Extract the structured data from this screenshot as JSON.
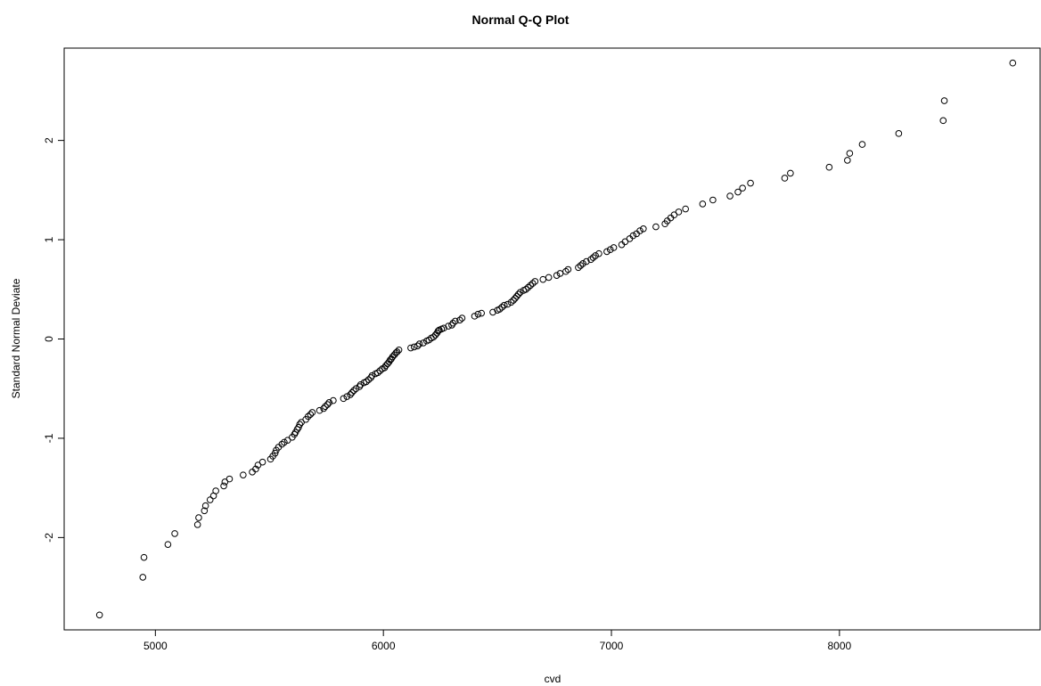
{
  "chart_data": {
    "type": "scatter",
    "title": "Normal Q-Q Plot",
    "xlabel": "cvd",
    "ylabel": "Standard Normal Deviate",
    "xlim": [
      4600,
      8880
    ],
    "ylim": [
      -2.93,
      2.93
    ],
    "xticks": [
      5000,
      6000,
      7000,
      8000
    ],
    "yticks": [
      -2,
      -1,
      0,
      1,
      2
    ],
    "xtick_labels": [
      "5000",
      "6000",
      "7000",
      "8000"
    ],
    "ytick_labels": [
      "-2",
      "-1",
      "0",
      "1",
      "2"
    ],
    "grid": false,
    "legend": "none",
    "marker": "open-circle",
    "points": [
      [
        4755,
        -2.78
      ],
      [
        4945,
        -2.4
      ],
      [
        4950,
        -2.2
      ],
      [
        5055,
        -2.07
      ],
      [
        5085,
        -1.96
      ],
      [
        5185,
        -1.87
      ],
      [
        5190,
        -1.8
      ],
      [
        5215,
        -1.73
      ],
      [
        5220,
        -1.68
      ],
      [
        5240,
        -1.62
      ],
      [
        5255,
        -1.58
      ],
      [
        5265,
        -1.53
      ],
      [
        5300,
        -1.48
      ],
      [
        5305,
        -1.44
      ],
      [
        5325,
        -1.41
      ],
      [
        5385,
        -1.37
      ],
      [
        5425,
        -1.34
      ],
      [
        5440,
        -1.31
      ],
      [
        5450,
        -1.27
      ],
      [
        5470,
        -1.24
      ],
      [
        5505,
        -1.21
      ],
      [
        5515,
        -1.18
      ],
      [
        5525,
        -1.15
      ],
      [
        5530,
        -1.12
      ],
      [
        5540,
        -1.09
      ],
      [
        5555,
        -1.06
      ],
      [
        5565,
        -1.04
      ],
      [
        5580,
        -1.02
      ],
      [
        5600,
        -0.99
      ],
      [
        5610,
        -0.96
      ],
      [
        5615,
        -0.94
      ],
      [
        5622,
        -0.91
      ],
      [
        5628,
        -0.89
      ],
      [
        5633,
        -0.86
      ],
      [
        5640,
        -0.84
      ],
      [
        5660,
        -0.81
      ],
      [
        5670,
        -0.78
      ],
      [
        5680,
        -0.76
      ],
      [
        5688,
        -0.74
      ],
      [
        5720,
        -0.72
      ],
      [
        5738,
        -0.7
      ],
      [
        5745,
        -0.68
      ],
      [
        5755,
        -0.66
      ],
      [
        5762,
        -0.64
      ],
      [
        5780,
        -0.62
      ],
      [
        5825,
        -0.6
      ],
      [
        5840,
        -0.58
      ],
      [
        5855,
        -0.56
      ],
      [
        5862,
        -0.54
      ],
      [
        5870,
        -0.52
      ],
      [
        5880,
        -0.5
      ],
      [
        5895,
        -0.48
      ],
      [
        5900,
        -0.46
      ],
      [
        5915,
        -0.44
      ],
      [
        5925,
        -0.43
      ],
      [
        5935,
        -0.41
      ],
      [
        5945,
        -0.39
      ],
      [
        5950,
        -0.37
      ],
      [
        5965,
        -0.35
      ],
      [
        5975,
        -0.34
      ],
      [
        5985,
        -0.32
      ],
      [
        5995,
        -0.3
      ],
      [
        6005,
        -0.29
      ],
      [
        6010,
        -0.27
      ],
      [
        6018,
        -0.25
      ],
      [
        6025,
        -0.23
      ],
      [
        6030,
        -0.21
      ],
      [
        6035,
        -0.2
      ],
      [
        6040,
        -0.18
      ],
      [
        6048,
        -0.16
      ],
      [
        6055,
        -0.14
      ],
      [
        6060,
        -0.13
      ],
      [
        6068,
        -0.11
      ],
      [
        6120,
        -0.09
      ],
      [
        6135,
        -0.08
      ],
      [
        6150,
        -0.07
      ],
      [
        6158,
        -0.05
      ],
      [
        6175,
        -0.04
      ],
      [
        6190,
        -0.02
      ],
      [
        6200,
        -0.01
      ],
      [
        6210,
        0.01
      ],
      [
        6220,
        0.02
      ],
      [
        6228,
        0.04
      ],
      [
        6235,
        0.06
      ],
      [
        6240,
        0.08
      ],
      [
        6245,
        0.09
      ],
      [
        6255,
        0.1
      ],
      [
        6265,
        0.11
      ],
      [
        6285,
        0.13
      ],
      [
        6300,
        0.14
      ],
      [
        6305,
        0.16
      ],
      [
        6315,
        0.18
      ],
      [
        6335,
        0.19
      ],
      [
        6345,
        0.21
      ],
      [
        6400,
        0.23
      ],
      [
        6415,
        0.25
      ],
      [
        6430,
        0.26
      ],
      [
        6480,
        0.27
      ],
      [
        6500,
        0.29
      ],
      [
        6510,
        0.3
      ],
      [
        6520,
        0.32
      ],
      [
        6530,
        0.34
      ],
      [
        6545,
        0.35
      ],
      [
        6560,
        0.37
      ],
      [
        6570,
        0.39
      ],
      [
        6578,
        0.41
      ],
      [
        6585,
        0.43
      ],
      [
        6592,
        0.45
      ],
      [
        6600,
        0.47
      ],
      [
        6615,
        0.49
      ],
      [
        6625,
        0.5
      ],
      [
        6635,
        0.52
      ],
      [
        6645,
        0.54
      ],
      [
        6655,
        0.56
      ],
      [
        6665,
        0.58
      ],
      [
        6700,
        0.6
      ],
      [
        6725,
        0.62
      ],
      [
        6760,
        0.64
      ],
      [
        6775,
        0.66
      ],
      [
        6800,
        0.68
      ],
      [
        6810,
        0.7
      ],
      [
        6855,
        0.72
      ],
      [
        6865,
        0.74
      ],
      [
        6875,
        0.76
      ],
      [
        6890,
        0.78
      ],
      [
        6910,
        0.8
      ],
      [
        6920,
        0.82
      ],
      [
        6930,
        0.84
      ],
      [
        6945,
        0.86
      ],
      [
        6980,
        0.88
      ],
      [
        6995,
        0.9
      ],
      [
        7010,
        0.92
      ],
      [
        7045,
        0.95
      ],
      [
        7060,
        0.98
      ],
      [
        7080,
        1.01
      ],
      [
        7095,
        1.04
      ],
      [
        7110,
        1.06
      ],
      [
        7125,
        1.09
      ],
      [
        7140,
        1.11
      ],
      [
        7195,
        1.13
      ],
      [
        7235,
        1.16
      ],
      [
        7245,
        1.19
      ],
      [
        7260,
        1.22
      ],
      [
        7275,
        1.25
      ],
      [
        7295,
        1.28
      ],
      [
        7325,
        1.31
      ],
      [
        7400,
        1.36
      ],
      [
        7445,
        1.4
      ],
      [
        7520,
        1.44
      ],
      [
        7555,
        1.48
      ],
      [
        7575,
        1.52
      ],
      [
        7610,
        1.57
      ],
      [
        7760,
        1.62
      ],
      [
        7785,
        1.67
      ],
      [
        7955,
        1.73
      ],
      [
        8035,
        1.8
      ],
      [
        8045,
        1.87
      ],
      [
        8100,
        1.96
      ],
      [
        8260,
        2.07
      ],
      [
        8455,
        2.2
      ],
      [
        8460,
        2.4
      ],
      [
        8760,
        2.78
      ]
    ]
  }
}
